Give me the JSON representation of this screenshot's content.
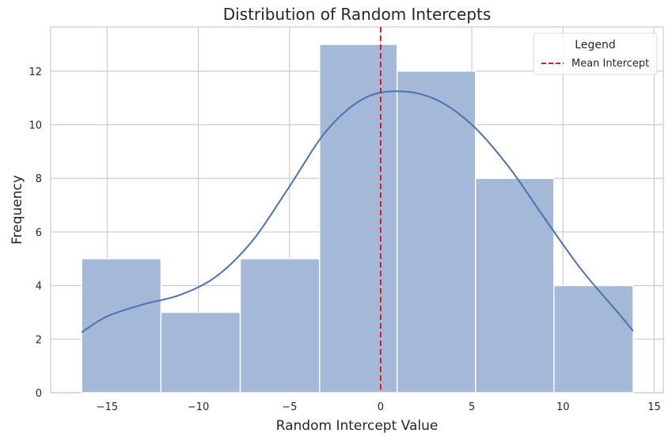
{
  "chart_data": {
    "type": "bar",
    "title": "Distribution of Random Intercepts",
    "xlabel": "Random Intercept Value",
    "ylabel": "Frequency",
    "xlim": [
      -18.1,
      15.5
    ],
    "ylim": [
      0,
      13.65
    ],
    "xticks": [
      -15,
      -10,
      -5,
      0,
      5,
      10,
      15
    ],
    "xtick_labels": [
      "−15",
      "−10",
      "−5",
      "0",
      "5",
      "10",
      "15"
    ],
    "yticks": [
      0,
      2,
      4,
      6,
      8,
      10,
      12
    ],
    "ytick_labels": [
      "0",
      "2",
      "4",
      "6",
      "8",
      "10",
      "12"
    ],
    "grid": true,
    "bins": [
      {
        "x0": -16.4,
        "x1": -12.05,
        "count": 5
      },
      {
        "x0": -12.05,
        "x1": -7.7,
        "count": 3
      },
      {
        "x0": -7.7,
        "x1": -3.35,
        "count": 5
      },
      {
        "x0": -3.35,
        "x1": 0.9,
        "count": 13
      },
      {
        "x0": 0.9,
        "x1": 5.2,
        "count": 12
      },
      {
        "x0": 5.2,
        "x1": 9.5,
        "count": 8
      },
      {
        "x0": 9.5,
        "x1": 13.85,
        "count": 4
      }
    ],
    "kde": {
      "x": [
        -16.4,
        -15.0,
        -13.0,
        -11.0,
        -9.0,
        -7.0,
        -5.0,
        -3.0,
        -1.0,
        0.9,
        3.0,
        5.0,
        7.0,
        9.0,
        11.0,
        13.0,
        13.85
      ],
      "y": [
        2.25,
        2.85,
        3.3,
        3.65,
        4.35,
        5.7,
        7.7,
        9.75,
        10.95,
        11.25,
        10.95,
        10.0,
        8.45,
        6.5,
        4.6,
        3.0,
        2.3
      ]
    },
    "mean_line": {
      "x": 0.0,
      "label": "Mean Intercept"
    },
    "legend": {
      "title": "Legend",
      "placement": "top-right"
    },
    "colors": {
      "bar": "#a4b8d8",
      "bar_edge": "#ffffff",
      "kde": "#4c72b0",
      "mean": "#e31a1c",
      "grid": "#cccccc",
      "axis": "#cccccc"
    }
  }
}
